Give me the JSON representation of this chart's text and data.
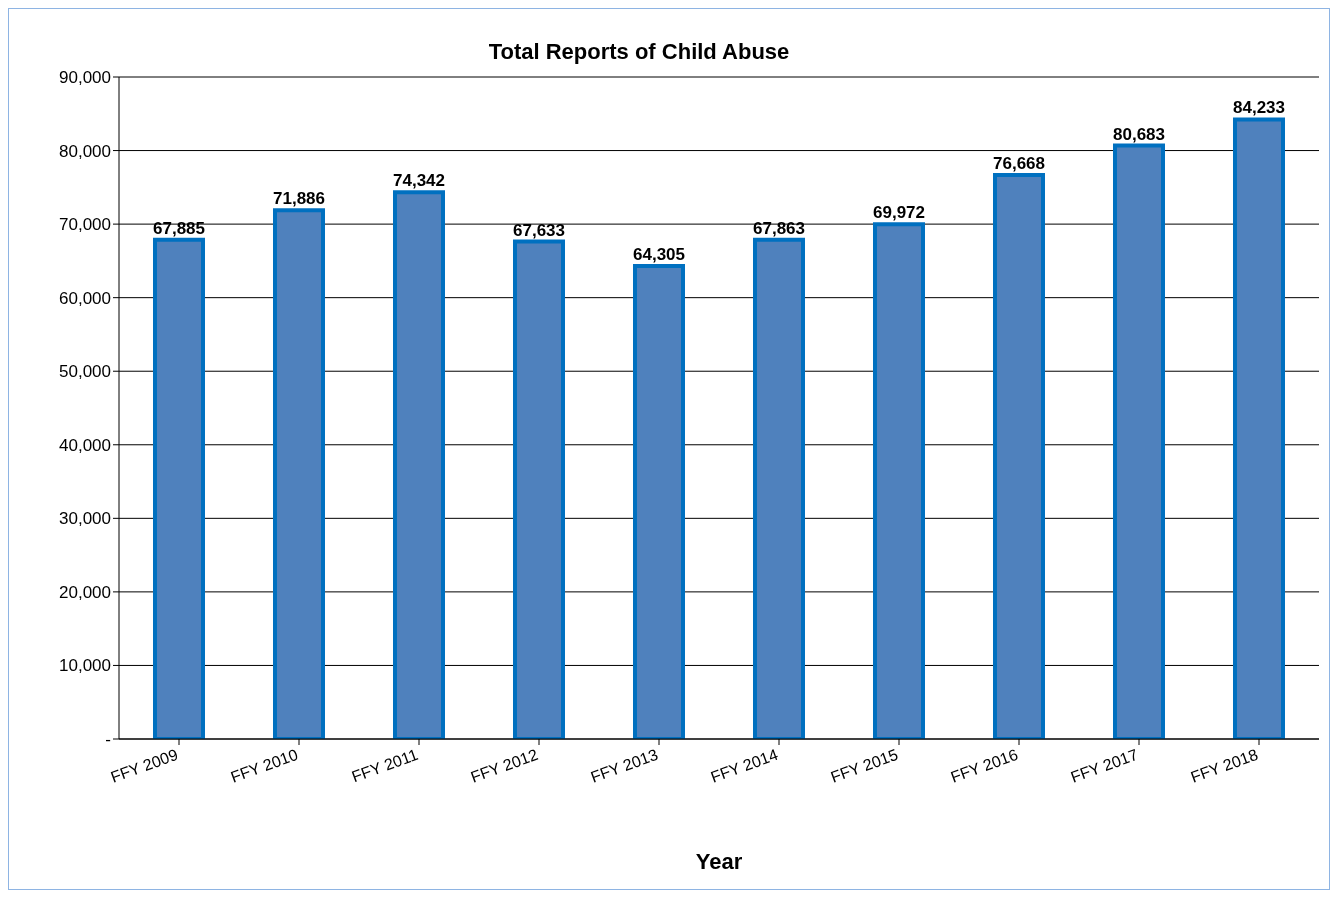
{
  "chart_data": {
    "type": "bar",
    "title": "Total  Reports of Child Abuse",
    "xlabel": "Year",
    "categories": [
      "FFY 2009",
      "FFY 2010",
      "FFY 2011",
      "FFY 2012",
      "FFY 2013",
      "FFY 2014",
      "FFY 2015",
      "FFY 2016",
      "FFY 2017",
      "FFY 2018"
    ],
    "values": [
      67885,
      71886,
      74342,
      67633,
      64305,
      67863,
      69972,
      76668,
      80683,
      84233
    ],
    "value_labels": [
      "67,885",
      "71,886",
      "74,342",
      "67,633",
      "64,305",
      "67,863",
      "69,972",
      "76,668",
      "80,683",
      "84,233"
    ],
    "color": "#4f81bd",
    "ylim": [
      0,
      90000
    ],
    "yticks": [
      {
        "value": 0,
        "label": "-"
      },
      {
        "value": 10000,
        "label": "10,000"
      },
      {
        "value": 20000,
        "label": "20,000"
      },
      {
        "value": 30000,
        "label": "30,000"
      },
      {
        "value": 40000,
        "label": "40,000"
      },
      {
        "value": 50000,
        "label": "50,000"
      },
      {
        "value": 60000,
        "label": "60,000"
      },
      {
        "value": 70000,
        "label": "70,000"
      },
      {
        "value": 80000,
        "label": "80,000"
      },
      {
        "value": 90000,
        "label": "90,000"
      }
    ],
    "grid": "y"
  }
}
